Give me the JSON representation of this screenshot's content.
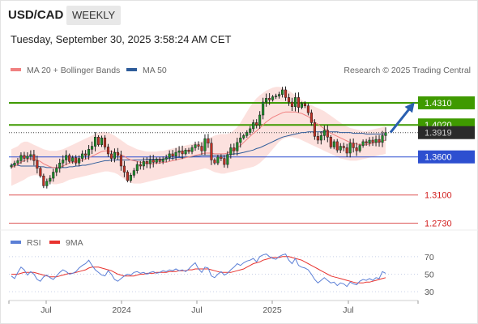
{
  "header": {
    "symbol": "USD/CAD",
    "period_button": "WEEKLY",
    "datetime": "Tuesday, September 30, 2025 3:58:24 AM CET"
  },
  "legend": {
    "ma20": {
      "label": "MA 20 + Bollinger Bands",
      "color": "#f08080"
    },
    "ma50": {
      "label": "MA 50",
      "color": "#2e5c9a"
    },
    "credit": "Research © 2025 Trading Central"
  },
  "rsi_legend": {
    "rsi": {
      "label": "RSI",
      "color": "#5b7fd6"
    },
    "ma9": {
      "label": "9MA",
      "color": "#e8322e"
    }
  },
  "chart_data": [
    {
      "type": "candlestick",
      "title": "USD/CAD WEEKLY",
      "ylim": [
        1.265,
        1.465
      ],
      "x_ticks": [
        "Jul",
        "2024",
        "Jul",
        "2025",
        "Jul"
      ],
      "levels": [
        {
          "value": 1.431,
          "label": "1.4310",
          "kind": "resistance",
          "color": "#3f9a00"
        },
        {
          "value": 1.402,
          "label": "1.4020",
          "kind": "resistance",
          "color": "#3f9a00"
        },
        {
          "value": 1.3919,
          "label": "1.3919",
          "kind": "last",
          "color": "#2b2b2b"
        },
        {
          "value": 1.36,
          "label": "1.3600",
          "kind": "pivot",
          "color": "#2d4fd0"
        },
        {
          "value": 1.31,
          "label": "1.3100",
          "kind": "support",
          "color": "#d21e1e"
        },
        {
          "value": 1.273,
          "label": "1.2730",
          "kind": "support",
          "color": "#d21e1e"
        }
      ],
      "forecast_arrow": {
        "from": 1.392,
        "to": 1.431,
        "direction": "up",
        "color": "#2a5fb0"
      },
      "close": [
        1.349,
        1.352,
        1.355,
        1.362,
        1.358,
        1.361,
        1.363,
        1.355,
        1.345,
        1.335,
        1.322,
        1.328,
        1.332,
        1.34,
        1.345,
        1.352,
        1.356,
        1.362,
        1.354,
        1.359,
        1.352,
        1.358,
        1.364,
        1.362,
        1.37,
        1.374,
        1.386,
        1.376,
        1.385,
        1.373,
        1.364,
        1.358,
        1.366,
        1.362,
        1.348,
        1.34,
        1.329,
        1.336,
        1.342,
        1.35,
        1.348,
        1.354,
        1.351,
        1.356,
        1.353,
        1.357,
        1.354,
        1.357,
        1.359,
        1.364,
        1.361,
        1.366,
        1.368,
        1.364,
        1.369,
        1.367,
        1.372,
        1.376,
        1.374,
        1.368,
        1.384,
        1.378,
        1.356,
        1.352,
        1.36,
        1.358,
        1.35,
        1.363,
        1.372,
        1.368,
        1.379,
        1.385,
        1.388,
        1.392,
        1.397,
        1.405,
        1.402,
        1.415,
        1.432,
        1.437,
        1.435,
        1.439,
        1.44,
        1.442,
        1.448,
        1.438,
        1.432,
        1.426,
        1.438,
        1.425,
        1.43,
        1.427,
        1.418,
        1.405,
        1.387,
        1.382,
        1.388,
        1.395,
        1.386,
        1.373,
        1.38,
        1.369,
        1.374,
        1.372,
        1.365,
        1.378,
        1.372,
        1.368,
        1.375,
        1.38,
        1.378,
        1.382,
        1.379,
        1.383,
        1.379,
        1.388,
        1.392
      ],
      "ma20": [
        1.346,
        1.348,
        1.35,
        1.353,
        1.355,
        1.357,
        1.358,
        1.357,
        1.356,
        1.354,
        1.351,
        1.349,
        1.347,
        1.346,
        1.346,
        1.347,
        1.348,
        1.35,
        1.352,
        1.353,
        1.354,
        1.355,
        1.356,
        1.357,
        1.359,
        1.361,
        1.363,
        1.365,
        1.367,
        1.368,
        1.368,
        1.367,
        1.366,
        1.365,
        1.363,
        1.361,
        1.358,
        1.356,
        1.355,
        1.354,
        1.353,
        1.352,
        1.352,
        1.351,
        1.351,
        1.352,
        1.352,
        1.353,
        1.353,
        1.354,
        1.355,
        1.356,
        1.357,
        1.358,
        1.359,
        1.36,
        1.361,
        1.362,
        1.363,
        1.364,
        1.365,
        1.365,
        1.365,
        1.364,
        1.364,
        1.364,
        1.364,
        1.365,
        1.367,
        1.369,
        1.372,
        1.375,
        1.379,
        1.383,
        1.387,
        1.391,
        1.394,
        1.398,
        1.402,
        1.406,
        1.409,
        1.412,
        1.414,
        1.416,
        1.418,
        1.419,
        1.419,
        1.419,
        1.419,
        1.418,
        1.417,
        1.415,
        1.413,
        1.41,
        1.406,
        1.403,
        1.4,
        1.397,
        1.394,
        1.391,
        1.389,
        1.387,
        1.385,
        1.383,
        1.381,
        1.379,
        1.378,
        1.377,
        1.376,
        1.376,
        1.376,
        1.377,
        1.378,
        1.379,
        1.38,
        1.381,
        1.382
      ],
      "ma50": [
        1.35,
        1.349,
        1.349,
        1.348,
        1.348,
        1.348,
        1.348,
        1.348,
        1.348,
        1.347,
        1.347,
        1.346,
        1.346,
        1.346,
        1.346,
        1.346,
        1.346,
        1.346,
        1.347,
        1.347,
        1.348,
        1.348,
        1.349,
        1.349,
        1.35,
        1.351,
        1.352,
        1.353,
        1.354,
        1.355,
        1.355,
        1.356,
        1.356,
        1.356,
        1.356,
        1.356,
        1.356,
        1.356,
        1.356,
        1.356,
        1.356,
        1.356,
        1.357,
        1.357,
        1.357,
        1.357,
        1.357,
        1.357,
        1.358,
        1.358,
        1.358,
        1.359,
        1.359,
        1.359,
        1.36,
        1.36,
        1.36,
        1.361,
        1.361,
        1.362,
        1.362,
        1.362,
        1.362,
        1.362,
        1.362,
        1.362,
        1.362,
        1.363,
        1.363,
        1.364,
        1.364,
        1.365,
        1.366,
        1.367,
        1.368,
        1.369,
        1.371,
        1.372,
        1.374,
        1.376,
        1.378,
        1.38,
        1.382,
        1.384,
        1.386,
        1.387,
        1.388,
        1.389,
        1.39,
        1.391,
        1.392,
        1.392,
        1.393,
        1.393,
        1.393,
        1.393,
        1.393,
        1.393,
        1.393,
        1.393,
        1.393,
        1.393,
        1.392,
        1.392,
        1.392,
        1.392,
        1.391,
        1.391,
        1.391,
        1.391,
        1.39,
        1.39,
        1.39,
        1.39,
        1.39,
        1.39,
        1.39
      ],
      "bb_upper": [
        1.37,
        1.372,
        1.374,
        1.378,
        1.38,
        1.38,
        1.378,
        1.376,
        1.374,
        1.372,
        1.37,
        1.369,
        1.368,
        1.368,
        1.368,
        1.369,
        1.37,
        1.372,
        1.374,
        1.376,
        1.378,
        1.38,
        1.382,
        1.384,
        1.386,
        1.388,
        1.39,
        1.392,
        1.393,
        1.393,
        1.392,
        1.39,
        1.388,
        1.385,
        1.382,
        1.379,
        1.376,
        1.374,
        1.372,
        1.37,
        1.369,
        1.368,
        1.367,
        1.367,
        1.367,
        1.367,
        1.368,
        1.368,
        1.369,
        1.37,
        1.371,
        1.372,
        1.373,
        1.374,
        1.375,
        1.376,
        1.377,
        1.378,
        1.379,
        1.38,
        1.382,
        1.384,
        1.386,
        1.388,
        1.389,
        1.39,
        1.39,
        1.39,
        1.392,
        1.395,
        1.399,
        1.405,
        1.412,
        1.419,
        1.426,
        1.432,
        1.437,
        1.441,
        1.444,
        1.447,
        1.449,
        1.451,
        1.452,
        1.452,
        1.451,
        1.449,
        1.447,
        1.444,
        1.441,
        1.438,
        1.435,
        1.432,
        1.43,
        1.428,
        1.426,
        1.424,
        1.422,
        1.42,
        1.417,
        1.414,
        1.411,
        1.408,
        1.405,
        1.402,
        1.4,
        1.398,
        1.397,
        1.396,
        1.395,
        1.394,
        1.394,
        1.395,
        1.396,
        1.397,
        1.398,
        1.399,
        1.4
      ],
      "bb_lower": [
        1.322,
        1.324,
        1.326,
        1.328,
        1.33,
        1.333,
        1.335,
        1.336,
        1.336,
        1.335,
        1.332,
        1.329,
        1.326,
        1.324,
        1.324,
        1.325,
        1.326,
        1.328,
        1.33,
        1.331,
        1.332,
        1.333,
        1.334,
        1.335,
        1.336,
        1.337,
        1.338,
        1.339,
        1.34,
        1.341,
        1.341,
        1.34,
        1.339,
        1.337,
        1.334,
        1.331,
        1.328,
        1.326,
        1.325,
        1.325,
        1.325,
        1.326,
        1.327,
        1.328,
        1.329,
        1.33,
        1.331,
        1.332,
        1.333,
        1.334,
        1.335,
        1.336,
        1.337,
        1.338,
        1.339,
        1.34,
        1.341,
        1.342,
        1.343,
        1.344,
        1.345,
        1.344,
        1.342,
        1.34,
        1.339,
        1.338,
        1.338,
        1.339,
        1.34,
        1.341,
        1.342,
        1.343,
        1.344,
        1.345,
        1.346,
        1.347,
        1.349,
        1.352,
        1.356,
        1.36,
        1.365,
        1.37,
        1.375,
        1.38,
        1.383,
        1.385,
        1.386,
        1.386,
        1.385,
        1.384,
        1.382,
        1.38,
        1.378,
        1.376,
        1.374,
        1.372,
        1.37,
        1.368,
        1.366,
        1.364,
        1.362,
        1.36,
        1.358,
        1.357,
        1.356,
        1.355,
        1.355,
        1.355,
        1.356,
        1.357,
        1.358,
        1.359,
        1.36,
        1.361,
        1.362,
        1.363,
        1.364
      ]
    },
    {
      "type": "line",
      "title": "RSI",
      "ylim": [
        20,
        80
      ],
      "y_ticks": [
        70,
        50,
        30
      ],
      "series": [
        {
          "name": "RSI",
          "color": "#5b7fd6",
          "values": [
            48,
            45,
            52,
            58,
            55,
            49,
            53,
            50,
            44,
            42,
            47,
            49,
            46,
            44,
            48,
            52,
            55,
            53,
            50,
            51,
            53,
            57,
            60,
            62,
            66,
            60,
            55,
            52,
            49,
            48,
            54,
            50,
            44,
            42,
            45,
            48,
            50,
            49,
            52,
            53,
            51,
            52,
            50,
            52,
            53,
            51,
            52,
            54,
            53,
            55,
            54,
            56,
            54,
            55,
            53,
            56,
            60,
            63,
            56,
            52,
            58,
            57,
            48,
            46,
            50,
            53,
            49,
            51,
            55,
            58,
            62,
            60,
            63,
            65,
            66,
            68,
            64,
            70,
            72,
            73,
            70,
            68,
            67,
            70,
            72,
            73,
            66,
            62,
            68,
            60,
            58,
            57,
            55,
            50,
            44,
            40,
            43,
            46,
            43,
            40,
            41,
            37,
            40,
            39,
            36,
            41,
            39,
            38,
            42,
            44,
            43,
            45,
            43,
            46,
            45,
            53,
            51
          ]
        },
        {
          "name": "9MA",
          "color": "#e8322e",
          "values": [
            50,
            50,
            50,
            51,
            52,
            52,
            52,
            52,
            51,
            50,
            49,
            48,
            47,
            47,
            47,
            48,
            49,
            50,
            51,
            51,
            52,
            53,
            54,
            55,
            57,
            58,
            58,
            58,
            57,
            56,
            55,
            54,
            52,
            50,
            49,
            48,
            48,
            48,
            48,
            49,
            50,
            50,
            51,
            51,
            51,
            52,
            52,
            52,
            52,
            53,
            53,
            53,
            54,
            54,
            54,
            55,
            55,
            56,
            56,
            56,
            56,
            56,
            55,
            54,
            53,
            52,
            52,
            52,
            52,
            53,
            54,
            55,
            56,
            58,
            60,
            62,
            63,
            64,
            66,
            67,
            68,
            69,
            69,
            69,
            70,
            70,
            70,
            69,
            68,
            67,
            66,
            64,
            62,
            60,
            58,
            56,
            54,
            52,
            50,
            48,
            47,
            46,
            45,
            44,
            43,
            42,
            41,
            40,
            40,
            40,
            41,
            41,
            42,
            43,
            44,
            45,
            46
          ]
        }
      ]
    }
  ]
}
